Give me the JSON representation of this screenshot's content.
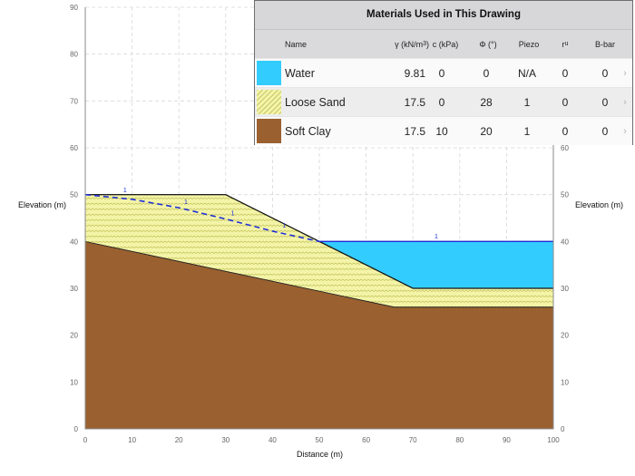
{
  "chart_data": {
    "type": "area",
    "xlabel": "Distance (m)",
    "ylabel_left": "Elevation (m)",
    "ylabel_right": "Elevation (m)",
    "xlim": [
      0,
      100
    ],
    "ylim": [
      0,
      90
    ],
    "x_ticks": [
      0,
      10,
      20,
      30,
      40,
      50,
      60,
      70,
      80,
      90,
      100
    ],
    "y_ticks": [
      0,
      10,
      20,
      30,
      40,
      50,
      60,
      70,
      80,
      90
    ],
    "grid": true,
    "regions": [
      {
        "name": "Soft Clay",
        "color": "#9a6030",
        "points": [
          [
            0,
            0
          ],
          [
            0,
            40
          ],
          [
            66,
            26
          ],
          [
            100,
            26
          ],
          [
            100,
            0
          ]
        ]
      },
      {
        "name": "Loose Sand",
        "color": "#f4f4a8",
        "points": [
          [
            0,
            40
          ],
          [
            0,
            50
          ],
          [
            30,
            50
          ],
          [
            50,
            40
          ],
          [
            70,
            30
          ],
          [
            100,
            30
          ],
          [
            100,
            26
          ],
          [
            66,
            26
          ]
        ]
      },
      {
        "name": "Water",
        "color": "#33ccff",
        "points": [
          [
            50,
            40
          ],
          [
            100,
            40
          ],
          [
            100,
            30
          ],
          [
            70,
            30
          ]
        ]
      }
    ],
    "ground_surface": [
      [
        0,
        50
      ],
      [
        30,
        50
      ],
      [
        50,
        40
      ],
      [
        70,
        30
      ],
      [
        100,
        30
      ]
    ],
    "piezometric_line": {
      "label": "1",
      "points": [
        [
          0,
          50
        ],
        [
          10,
          49
        ],
        [
          20,
          47.2
        ],
        [
          30,
          44.8
        ],
        [
          40,
          42.2
        ],
        [
          50,
          40
        ],
        [
          100,
          40
        ]
      ],
      "label_positions": [
        [
          8.5,
          50.3
        ],
        [
          21.5,
          47.8
        ],
        [
          31.5,
          45.4
        ],
        [
          42.5,
          42.8
        ],
        [
          75,
          40.5
        ]
      ]
    }
  },
  "materials_panel": {
    "title": "Materials Used in This Drawing",
    "headers": {
      "name": "Name",
      "gamma": "γ (kN/m",
      "gamma_sup": "3",
      "gamma_close": ")",
      "c": "c (kPa)",
      "phi": "Φ (°)",
      "piezo": "Piezo",
      "ru": "r",
      "ru_sub": "u",
      "bbar": "B-bar"
    },
    "rows": [
      {
        "name": "Water",
        "color": "#33ccff",
        "pattern": "solid",
        "gamma": "9.81",
        "c": "0",
        "phi": "0",
        "piezo": "N/A",
        "ru": "0",
        "bbar": "0"
      },
      {
        "name": "Loose Sand",
        "color": "#f4f4a8",
        "pattern": "sand",
        "gamma": "17.5",
        "c": "0",
        "phi": "28",
        "piezo": "1",
        "ru": "0",
        "bbar": "0"
      },
      {
        "name": "Soft Clay",
        "color": "#9a6030",
        "pattern": "solid",
        "gamma": "17.5",
        "c": "10",
        "phi": "20",
        "piezo": "1",
        "ru": "0",
        "bbar": "0"
      }
    ],
    "row_chevron": "›"
  }
}
